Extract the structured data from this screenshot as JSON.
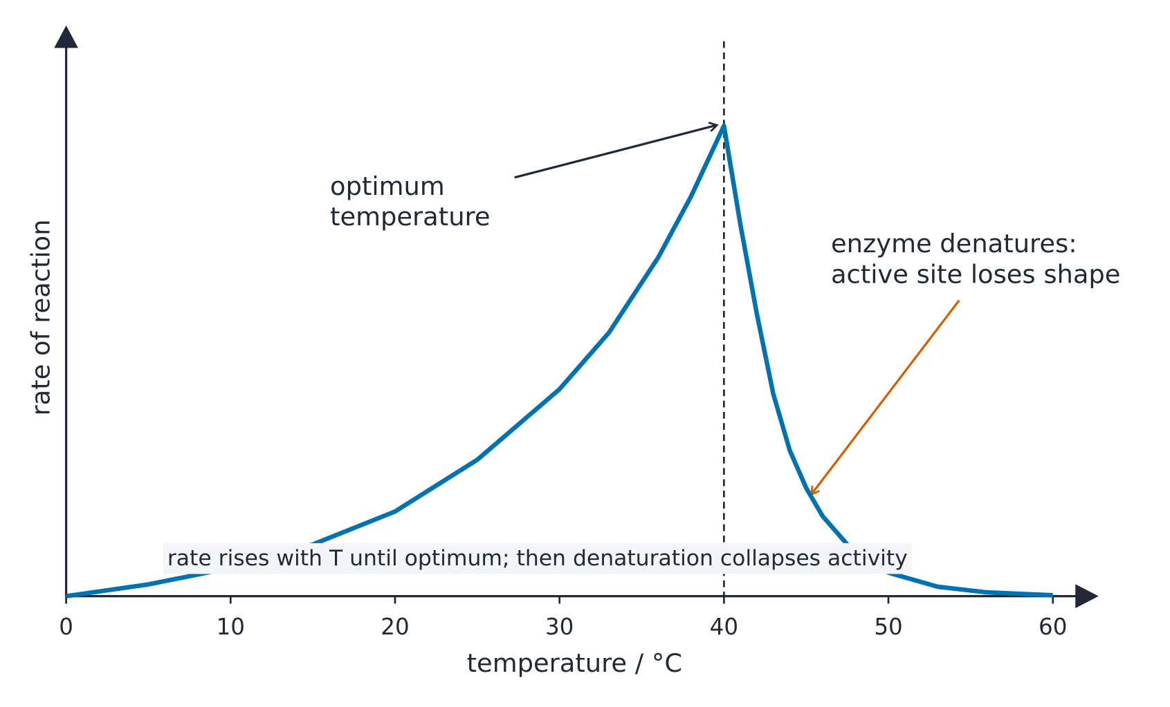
{
  "chart_data": {
    "type": "line",
    "x_label": "temperature / °C",
    "y_label": "rate of reaction",
    "x": [
      0,
      5,
      10,
      15,
      20,
      25,
      30,
      33,
      36,
      38,
      40,
      41,
      42,
      43,
      44,
      45,
      46,
      48,
      50,
      53,
      56,
      60
    ],
    "series": [
      {
        "name": "rate",
        "color": "#0072b2",
        "values": [
          0,
          0.025,
          0.06,
          0.11,
          0.18,
          0.29,
          0.44,
          0.56,
          0.72,
          0.85,
          1.0,
          0.79,
          0.6,
          0.43,
          0.31,
          0.23,
          0.17,
          0.09,
          0.05,
          0.02,
          0.008,
          0.002
        ]
      }
    ],
    "xlim": [
      0,
      60
    ],
    "ylim": [
      0,
      1
    ],
    "xticks": [
      0,
      10,
      20,
      30,
      40,
      50,
      60
    ],
    "vline": 40,
    "annotations": [
      {
        "lines": [
          "optimum",
          "temperature"
        ]
      },
      {
        "lines": [
          "enzyme denatures:",
          "active site loses shape"
        ]
      }
    ],
    "note": "rate rises with T until optimum; then denaturation collapses activity"
  }
}
